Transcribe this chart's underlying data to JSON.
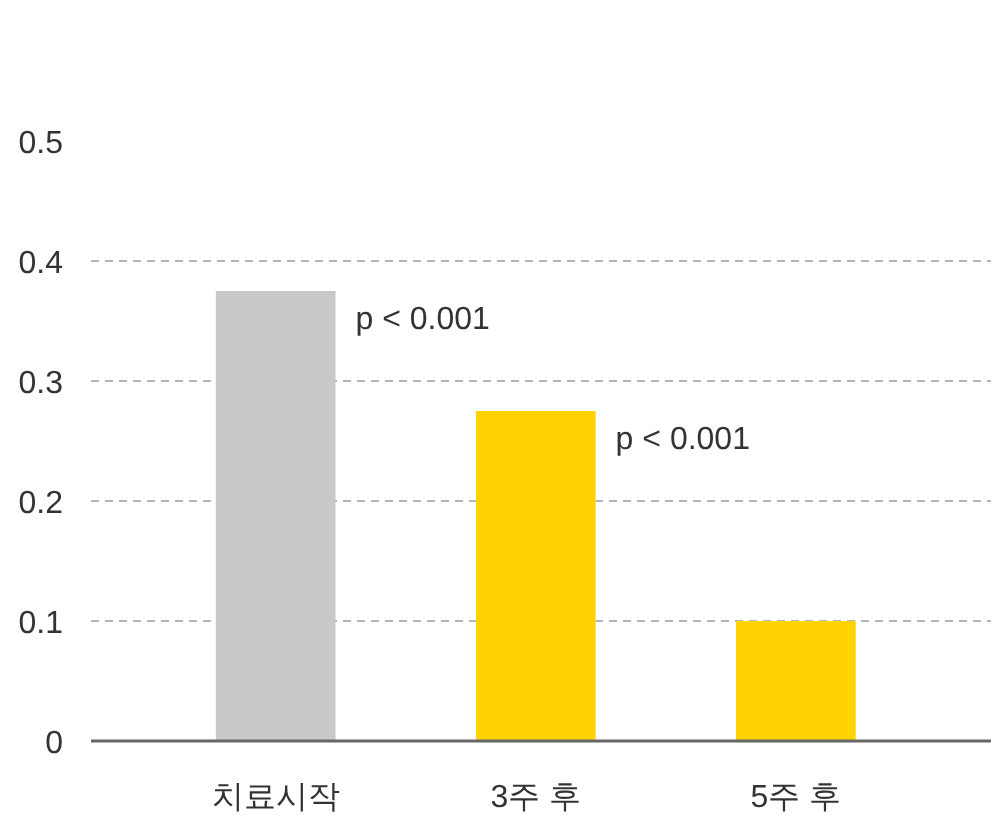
{
  "chart_data": {
    "type": "bar",
    "categories": [
      "치료시작",
      "3주 후",
      "5주 후"
    ],
    "values": [
      0.375,
      0.275,
      0.1
    ],
    "colors": [
      "#c8c8c8",
      "#ffd200",
      "#ffd200"
    ],
    "ylim": [
      0,
      0.5
    ],
    "yticks": [
      0,
      0.1,
      0.2,
      0.3,
      0.4,
      0.5
    ],
    "grid": "y",
    "annotations": [
      {
        "text": "p < 0.001",
        "x": "치료시작",
        "y": 0.375
      },
      {
        "text": "p < 0.001",
        "x": "3주 후",
        "y": 0.275
      }
    ]
  }
}
